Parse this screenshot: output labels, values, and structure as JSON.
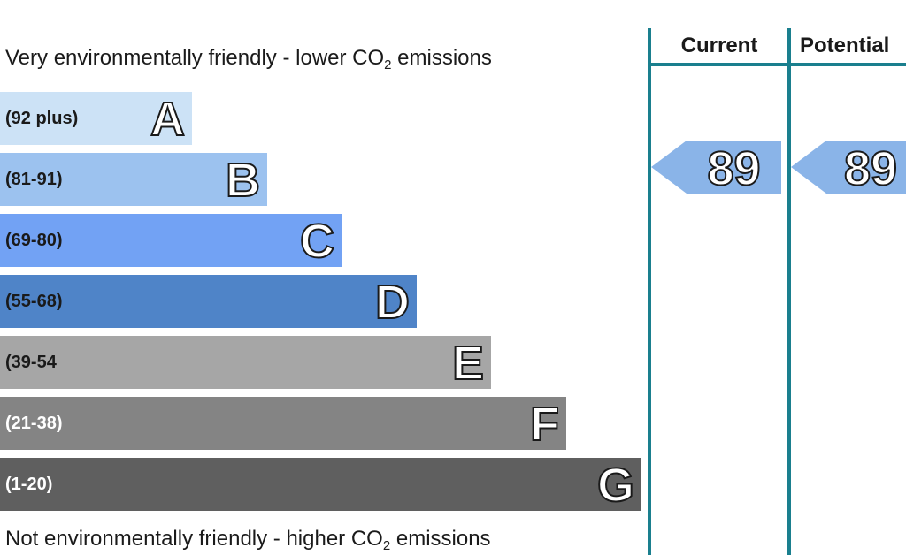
{
  "chart_data": {
    "type": "bar",
    "title_top": {
      "pre": "Very environmentally friendly - lower CO",
      "sub": "2",
      "post": " emissions"
    },
    "title_bottom": {
      "pre": "Not environmentally friendly - higher CO",
      "sub": "2",
      "post": " emissions"
    },
    "bands": [
      {
        "range": "(92 plus)",
        "letter": "A",
        "color": "#cce2f6",
        "range_color": "#1a1a1a"
      },
      {
        "range": "(81-91)",
        "letter": "B",
        "color": "#9cc2ef",
        "range_color": "#1a1a1a"
      },
      {
        "range": "(69-80)",
        "letter": "C",
        "color": "#72a2f4",
        "range_color": "#1a1a1a"
      },
      {
        "range": "(55-68)",
        "letter": "D",
        "color": "#4f84c8",
        "range_color": "#1a1a1a"
      },
      {
        "range": "(39-54",
        "letter": "E",
        "color": "#a6a6a6",
        "range_color": "#1a1a1a"
      },
      {
        "range": "(21-38)",
        "letter": "F",
        "color": "#848484",
        "range_color": "#ffffff"
      },
      {
        "range": "(1-20)",
        "letter": "G",
        "color": "#5f5f5f",
        "range_color": "#ffffff"
      }
    ],
    "columns": [
      {
        "header": "Current",
        "value": "89",
        "band": "B"
      },
      {
        "header": "Potential",
        "value": "89",
        "band": "B"
      }
    ],
    "colors": {
      "divider": "#1a7f8e",
      "indicator": "#8ab4e8"
    }
  }
}
